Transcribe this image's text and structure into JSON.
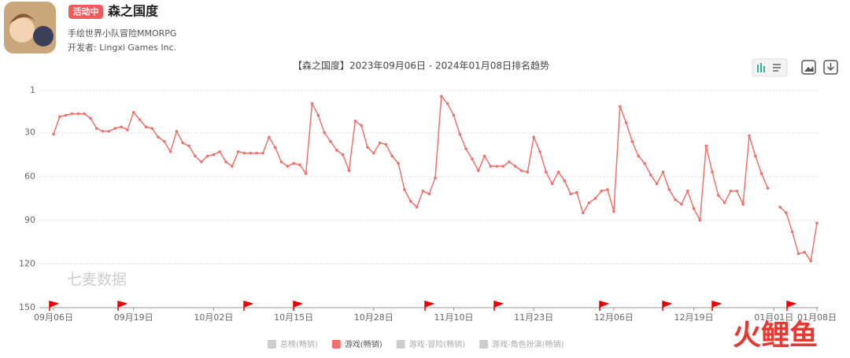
{
  "app": {
    "badge": "活动中",
    "name": "森之国度",
    "subtitle": "手绘世界小队冒险MMORPG",
    "developer": "开发者: Lingxi Games Inc."
  },
  "watermark": "七麦数据",
  "logo": "火鲤鱼",
  "chart_data": {
    "type": "line",
    "title": "【森之国度】2023年09月06日 - 2024年01月08日排名趋势",
    "categories": [
      "09月06日",
      null,
      null,
      null,
      null,
      null,
      null,
      null,
      null,
      null,
      null,
      null,
      null,
      "09月19日",
      null,
      null,
      null,
      null,
      null,
      null,
      null,
      null,
      null,
      null,
      null,
      null,
      "10月02日",
      null,
      null,
      null,
      null,
      null,
      null,
      null,
      null,
      null,
      null,
      null,
      null,
      "10月15日",
      null,
      null,
      null,
      null,
      null,
      null,
      null,
      null,
      null,
      null,
      null,
      null,
      "10月28日",
      null,
      null,
      null,
      null,
      null,
      null,
      null,
      null,
      null,
      null,
      null,
      null,
      "11月10日",
      null,
      null,
      null,
      null,
      null,
      null,
      null,
      null,
      null,
      null,
      null,
      null,
      "11月23日",
      null,
      null,
      null,
      null,
      null,
      null,
      null,
      null,
      null,
      null,
      null,
      null,
      "12月06日",
      null,
      null,
      null,
      null,
      null,
      null,
      null,
      null,
      null,
      null,
      null,
      null,
      "12月19日",
      null,
      null,
      null,
      null,
      null,
      null,
      null,
      null,
      null,
      null,
      null,
      null,
      "01月01日",
      null,
      null,
      null,
      null,
      null,
      null,
      "01月08日"
    ],
    "series": [
      {
        "name": "游戏(畅销)",
        "color": "#f0716b",
        "values": [
          31,
          19,
          18,
          17,
          17,
          17,
          20,
          27,
          29,
          29,
          27,
          26,
          28,
          16,
          21,
          26,
          27,
          33,
          36,
          43,
          29,
          37,
          39,
          46,
          50,
          46,
          45,
          43,
          50,
          53,
          43,
          44,
          44,
          44,
          44,
          33,
          40,
          50,
          53,
          51,
          52,
          58,
          10,
          18,
          30,
          36,
          42,
          45,
          56,
          22,
          25,
          40,
          44,
          37,
          38,
          46,
          51,
          69,
          77,
          81,
          70,
          72,
          61,
          5,
          10,
          18,
          31,
          41,
          48,
          56,
          46,
          53,
          53,
          53,
          50,
          53,
          56,
          57,
          33,
          43,
          57,
          65,
          57,
          63,
          72,
          71,
          85,
          78,
          75,
          70,
          69,
          84,
          12,
          23,
          36,
          46,
          51,
          59,
          65,
          57,
          69,
          76,
          79,
          70,
          82,
          90,
          39,
          57,
          73,
          78,
          70,
          70,
          79,
          32,
          46,
          58,
          68,
          null,
          81,
          85,
          98,
          113,
          112,
          118,
          92
        ]
      }
    ],
    "legend": [
      {
        "name": "总榜(畅销)",
        "color": "#cccccc"
      },
      {
        "name": "游戏(畅销)",
        "color": "#f0716b"
      },
      {
        "name": "游戏-冒险(畅销)",
        "color": "#cccccc"
      },
      {
        "name": "游戏-角色扮演(畅销)",
        "color": "#cccccc"
      }
    ],
    "ylim": [
      1,
      150
    ],
    "y_inverted": true,
    "yticks": [
      1,
      30,
      60,
      90,
      120,
      150
    ],
    "grid": true
  }
}
